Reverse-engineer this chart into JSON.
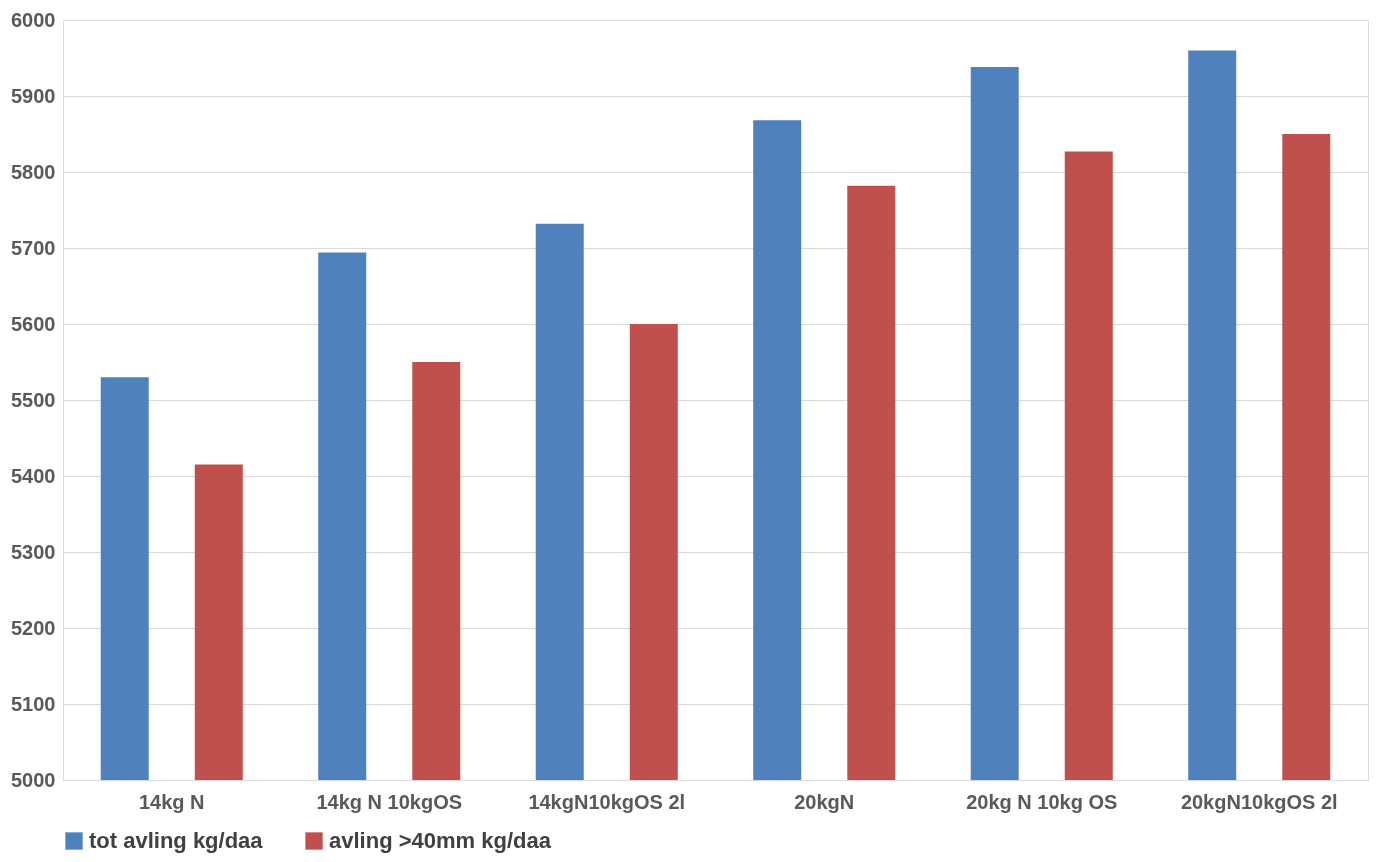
{
  "chart_data": {
    "type": "bar",
    "categories": [
      "14kg N",
      "14kg N 10kgOS",
      "14kgN10kgOS 2l",
      "20kgN",
      "20kg N 10kg OS",
      "20kgN10kgOS 2l"
    ],
    "series": [
      {
        "name": "tot avling kg/daa",
        "color": "#4f81bd",
        "values": [
          5530,
          5694,
          5732,
          5868,
          5938,
          5960
        ]
      },
      {
        "name": "avling >40mm kg/daa",
        "color": "#c0504d",
        "values": [
          5415,
          5550,
          5600,
          5782,
          5827,
          5850
        ]
      }
    ],
    "ylim": [
      5000,
      6000
    ],
    "yticks": [
      5000,
      5100,
      5200,
      5300,
      5400,
      5500,
      5600,
      5700,
      5800,
      5900,
      6000
    ],
    "grid": "y",
    "legend": "bottom"
  }
}
